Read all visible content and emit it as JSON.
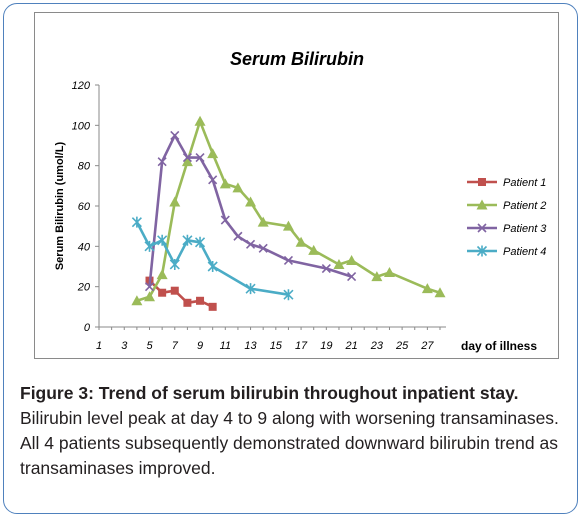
{
  "chart_data": {
    "type": "line",
    "title": "Serum Bilirubin",
    "xlabel": "day of illness",
    "ylabel": "Serum Bilirubin (umol/L)",
    "xlim": [
      1,
      28
    ],
    "ylim": [
      0,
      120
    ],
    "x_ticks": [
      1,
      3,
      5,
      7,
      9,
      11,
      13,
      15,
      17,
      19,
      21,
      23,
      25,
      27
    ],
    "y_ticks": [
      0,
      20,
      40,
      60,
      80,
      100,
      120
    ],
    "grid": false,
    "legend": "right",
    "series": [
      {
        "name": "Patient 1",
        "color": "#c0504d",
        "marker": "square",
        "points": [
          [
            5,
            23
          ],
          [
            6,
            17
          ],
          [
            7,
            18
          ],
          [
            8,
            12
          ],
          [
            9,
            13
          ],
          [
            10,
            10
          ]
        ]
      },
      {
        "name": "Patient 2",
        "color": "#9bbb59",
        "marker": "triangle",
        "points": [
          [
            4,
            13
          ],
          [
            5,
            15
          ],
          [
            6,
            26
          ],
          [
            7,
            62
          ],
          [
            8,
            82
          ],
          [
            9,
            102
          ],
          [
            10,
            86
          ],
          [
            11,
            71
          ],
          [
            12,
            69
          ],
          [
            13,
            62
          ],
          [
            14,
            52
          ],
          [
            16,
            50
          ],
          [
            17,
            42
          ],
          [
            18,
            38
          ],
          [
            20,
            31
          ],
          [
            21,
            33
          ],
          [
            23,
            25
          ],
          [
            24,
            27
          ],
          [
            27,
            19
          ],
          [
            28,
            17
          ]
        ]
      },
      {
        "name": "Patient 3",
        "color": "#8064a2",
        "marker": "x",
        "points": [
          [
            5,
            20
          ],
          [
            6,
            82
          ],
          [
            7,
            95
          ],
          [
            8,
            84
          ],
          [
            9,
            84
          ],
          [
            10,
            73
          ],
          [
            11,
            53
          ],
          [
            12,
            45
          ],
          [
            13,
            41
          ],
          [
            14,
            39
          ],
          [
            16,
            33
          ],
          [
            19,
            29
          ],
          [
            21,
            25
          ]
        ]
      },
      {
        "name": "Patient 4",
        "color": "#4bacc6",
        "marker": "star",
        "points": [
          [
            4,
            52
          ],
          [
            5,
            40
          ],
          [
            6,
            43
          ],
          [
            7,
            31
          ],
          [
            8,
            43
          ],
          [
            9,
            42
          ],
          [
            10,
            30
          ],
          [
            13,
            19
          ],
          [
            16,
            16
          ]
        ]
      }
    ]
  },
  "caption": {
    "figure_title": "Figure 3: Trend of serum bilirubin throughout inpatient stay.",
    "text": "Bilirubin level peak at day 4 to 9 along with worsening transaminases. All 4 patients subsequently demonstrated downward bilirubin trend as transaminases improved."
  }
}
